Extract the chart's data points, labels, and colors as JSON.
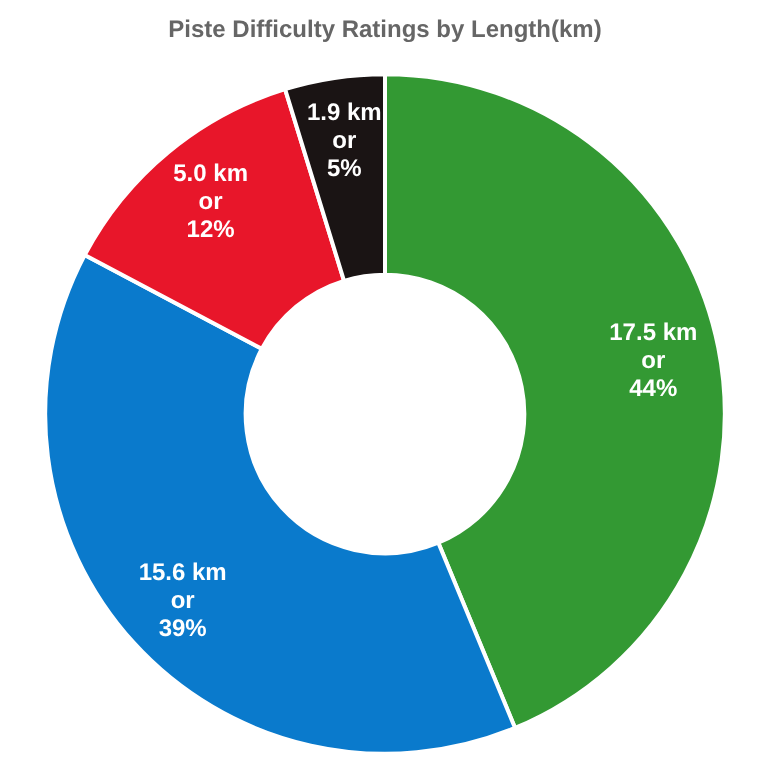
{
  "chart_data": {
    "type": "donut",
    "title": "Piste Difficulty Ratings by Length(km)",
    "categories": [
      null,
      null,
      null,
      null
    ],
    "values": [
      17.5,
      15.6,
      5.0,
      1.9
    ],
    "colors": [
      "#339933",
      "#0a7acc",
      "#e8162a",
      "#1a1414"
    ],
    "value_labels": [
      "17.5 km\nor\n44%",
      "15.6 km\nor\n39%",
      "5.0 km\nor\n12%",
      "1.9 km\nor\n5%"
    ]
  }
}
